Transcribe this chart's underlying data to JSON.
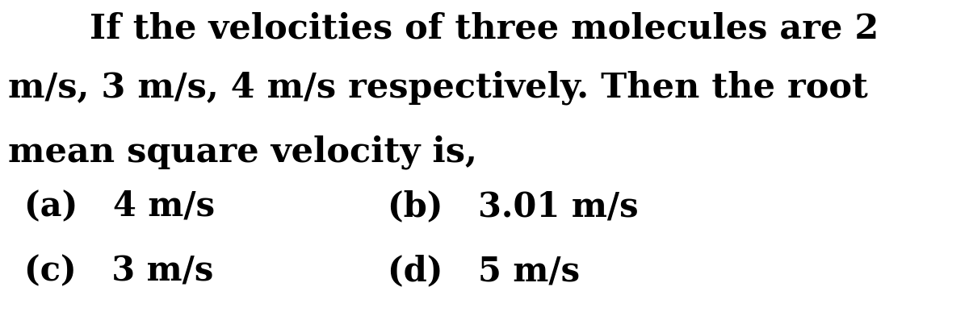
{
  "background_color": "#ffffff",
  "line1": "If the velocities of three molecules are 2",
  "line2": "m/s, 3 m/s, 4 m/s respectively. Then the root",
  "line3": "mean square velocity is,",
  "opt_a": "(a)   4 m/s",
  "opt_b": "(b)   3.01 m/s",
  "opt_c": "(c)   3 m/s",
  "opt_d": "(d)   5 m/s",
  "text_color": "#000000",
  "question_fontsize": 31,
  "option_fontsize": 30,
  "fig_width": 12.0,
  "fig_height": 3.87
}
